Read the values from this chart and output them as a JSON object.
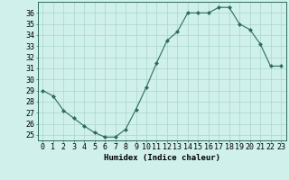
{
  "x": [
    0,
    1,
    2,
    3,
    4,
    5,
    6,
    7,
    8,
    9,
    10,
    11,
    12,
    13,
    14,
    15,
    16,
    17,
    18,
    19,
    20,
    21,
    22,
    23
  ],
  "y": [
    29.0,
    28.5,
    27.2,
    26.5,
    25.8,
    25.2,
    24.8,
    24.8,
    25.5,
    27.3,
    29.3,
    31.5,
    33.5,
    34.3,
    36.0,
    36.0,
    36.0,
    36.5,
    36.5,
    35.0,
    34.5,
    33.2,
    31.2,
    31.2
  ],
  "xlabel": "Humidex (Indice chaleur)",
  "xlim": [
    -0.5,
    23.5
  ],
  "ylim": [
    24.5,
    37.0
  ],
  "yticks": [
    25,
    26,
    27,
    28,
    29,
    30,
    31,
    32,
    33,
    34,
    35,
    36
  ],
  "xtick_labels": [
    "0",
    "1",
    "2",
    "3",
    "4",
    "5",
    "6",
    "7",
    "8",
    "9",
    "10",
    "11",
    "12",
    "13",
    "14",
    "15",
    "16",
    "17",
    "18",
    "19",
    "20",
    "21",
    "22",
    "23"
  ],
  "line_color": "#2e6b5e",
  "marker": "D",
  "marker_size": 2.0,
  "bg_color": "#cff0eb",
  "grid_color": "#aad6cf",
  "label_fontsize": 6.5,
  "tick_fontsize": 6.0
}
